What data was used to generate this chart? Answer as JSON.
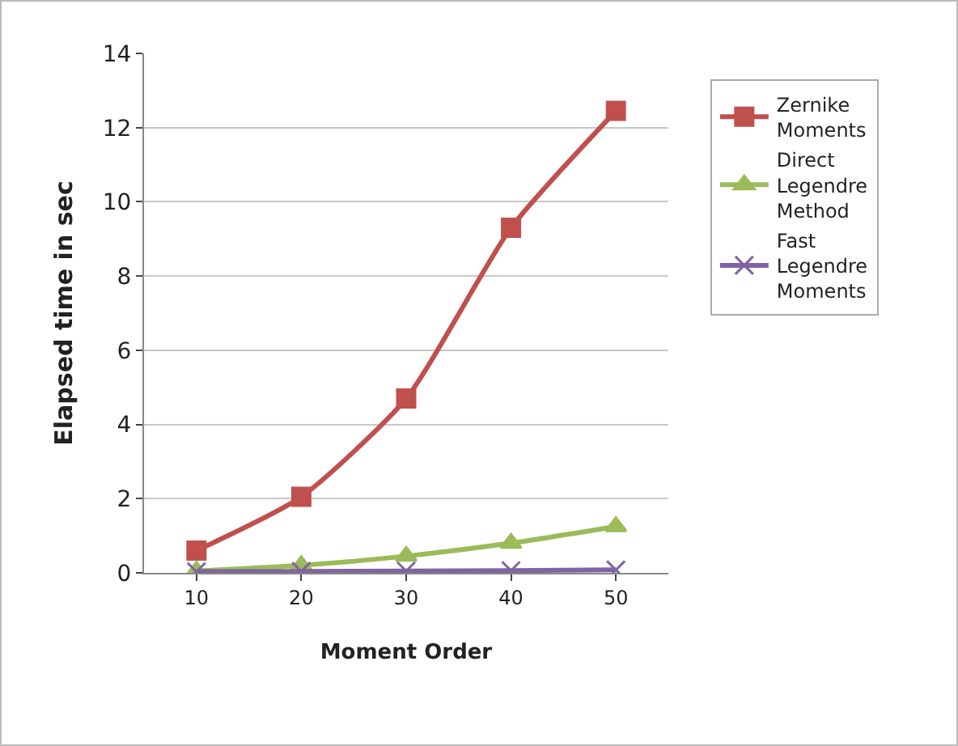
{
  "chart_data": {
    "type": "line",
    "xlabel": "Moment Order",
    "ylabel": "Elapsed time in sec",
    "categories": [
      "10",
      "20",
      "30",
      "40",
      "50"
    ],
    "series": [
      {
        "name": "Zernike Moments",
        "color": "#c0504d",
        "marker": "square",
        "values": [
          0.6,
          2.05,
          4.7,
          9.3,
          12.45
        ]
      },
      {
        "name": "Direct Legendre Method",
        "color": "#9bbb59",
        "marker": "triangle",
        "values": [
          0.05,
          0.2,
          0.45,
          0.8,
          1.25
        ]
      },
      {
        "name": "Fast Legendre Moments",
        "color": "#8064a2",
        "marker": "cross",
        "values": [
          0.03,
          0.04,
          0.05,
          0.06,
          0.08
        ]
      }
    ],
    "ylim": [
      0,
      14
    ],
    "yticks": [
      0,
      2,
      4,
      6,
      8,
      10,
      12,
      14
    ],
    "grid": "y",
    "legend": "right",
    "line_style": "solid"
  }
}
